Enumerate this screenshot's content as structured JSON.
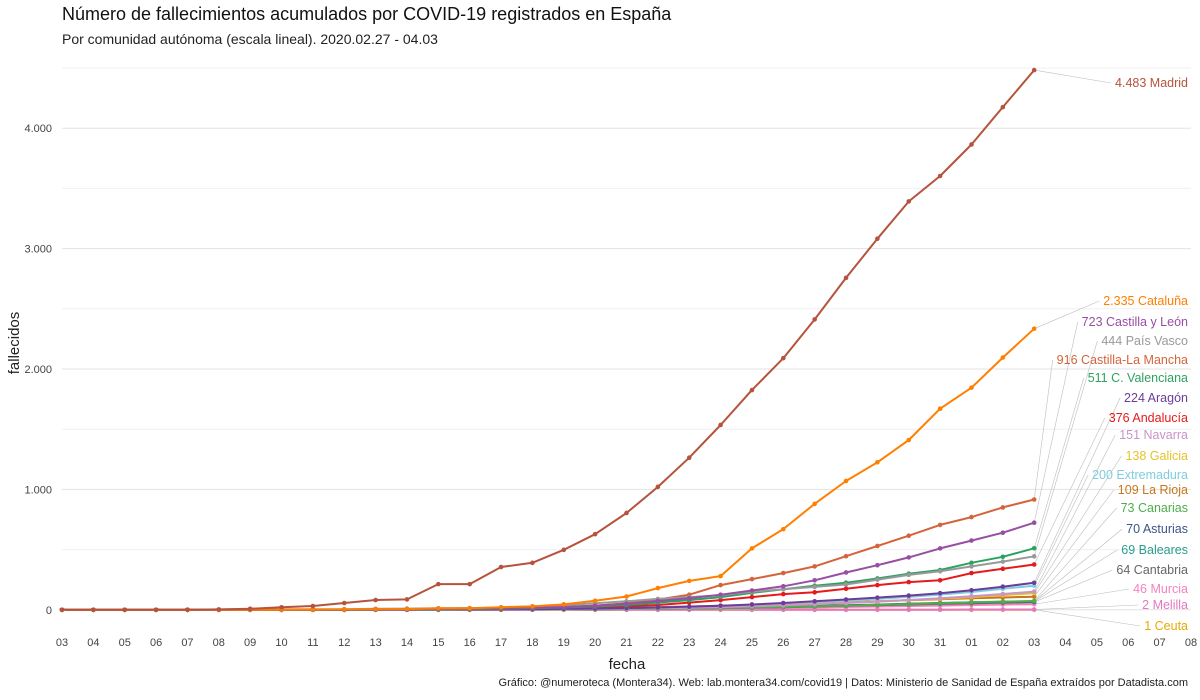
{
  "header": {
    "title": "Número de fallecimientos acumulados por COVID-19 registrados en España",
    "subtitle": "Por comunidad autónoma (escala lineal). 2020.02.27 - 04.03"
  },
  "caption": "Gráfico: @numeroteca (Montera34). Web: lab.montera34.com/covid19 | Datos: Ministerio de Sanidad de España extraídos por Datadista.com",
  "chart_data": {
    "type": "line",
    "title": "Número de fallecimientos acumulados por COVID-19 registrados en España",
    "subtitle": "Por comunidad autónoma (escala lineal). 2020.02.27 - 04.03",
    "xlabel": "fecha",
    "ylabel": "fallecidos",
    "x": [
      "2020-03-03",
      "2020-03-04",
      "2020-03-05",
      "2020-03-06",
      "2020-03-07",
      "2020-03-08",
      "2020-03-09",
      "2020-03-10",
      "2020-03-11",
      "2020-03-12",
      "2020-03-13",
      "2020-03-14",
      "2020-03-15",
      "2020-03-16",
      "2020-03-17",
      "2020-03-18",
      "2020-03-19",
      "2020-03-20",
      "2020-03-21",
      "2020-03-22",
      "2020-03-23",
      "2020-03-24",
      "2020-03-25",
      "2020-03-26",
      "2020-03-27",
      "2020-03-28",
      "2020-03-29",
      "2020-03-30",
      "2020-03-31",
      "2020-04-01",
      "2020-04-02",
      "2020-04-03"
    ],
    "x_ticks": [
      "03",
      "04",
      "05",
      "06",
      "07",
      "08",
      "09",
      "10",
      "11",
      "12",
      "13",
      "14",
      "15",
      "16",
      "17",
      "18",
      "19",
      "20",
      "21",
      "22",
      "23",
      "24",
      "25",
      "26",
      "27",
      "28",
      "29",
      "30",
      "31",
      "01",
      "02",
      "03",
      "04",
      "05",
      "06",
      "07",
      "08"
    ],
    "y_ticks": [
      0,
      1000,
      2000,
      3000,
      4000
    ],
    "y_tick_labels": [
      "0",
      "1.000",
      "2.000",
      "3.000",
      "4.000"
    ],
    "ylim": [
      -60,
      4550
    ],
    "grid": true,
    "legend": "direct labels at right end of lines",
    "series": [
      {
        "name": "Ceuta",
        "label": "1 Ceuta",
        "color": "#E6AB02",
        "values": [
          0,
          0,
          0,
          0,
          0,
          0,
          0,
          0,
          0,
          0,
          0,
          0,
          0,
          0,
          0,
          0,
          0,
          0,
          0,
          0,
          0,
          0,
          0,
          0,
          0,
          0,
          0,
          0,
          0,
          0,
          1,
          1
        ]
      },
      {
        "name": "Melilla",
        "label": "2 Melilla",
        "color": "#E377C2",
        "values": [
          0,
          0,
          0,
          0,
          0,
          0,
          0,
          0,
          0,
          0,
          0,
          0,
          0,
          0,
          0,
          0,
          0,
          0,
          0,
          0,
          0,
          0,
          0,
          0,
          0,
          1,
          1,
          1,
          1,
          2,
          2,
          2
        ]
      },
      {
        "name": "Murcia",
        "label": "46 Murcia",
        "color": "#F781BF",
        "values": [
          0,
          0,
          0,
          0,
          0,
          0,
          0,
          0,
          0,
          0,
          0,
          0,
          0,
          0,
          1,
          1,
          2,
          3,
          4,
          6,
          8,
          10,
          12,
          16,
          19,
          23,
          27,
          31,
          35,
          40,
          43,
          46
        ]
      },
      {
        "name": "Cantabria",
        "label": "64 Cantabria",
        "color": "#666666",
        "values": [
          0,
          0,
          0,
          0,
          0,
          0,
          0,
          0,
          0,
          0,
          0,
          0,
          0,
          0,
          1,
          2,
          3,
          4,
          6,
          8,
          11,
          14,
          17,
          21,
          27,
          33,
          38,
          44,
          49,
          54,
          59,
          64
        ]
      },
      {
        "name": "Baleares",
        "label": "69 Baleares",
        "color": "#2A9D8F",
        "values": [
          0,
          0,
          0,
          0,
          0,
          0,
          0,
          0,
          0,
          0,
          1,
          1,
          2,
          2,
          3,
          3,
          4,
          5,
          7,
          9,
          12,
          16,
          20,
          24,
          29,
          35,
          42,
          48,
          54,
          60,
          64,
          69
        ]
      },
      {
        "name": "Asturias",
        "label": "70 Asturias",
        "color": "#3C5488",
        "values": [
          0,
          0,
          0,
          0,
          0,
          0,
          0,
          0,
          0,
          0,
          1,
          1,
          2,
          3,
          4,
          5,
          6,
          8,
          10,
          13,
          16,
          19,
          22,
          27,
          32,
          37,
          43,
          50,
          56,
          61,
          66,
          70
        ]
      },
      {
        "name": "Canarias",
        "label": "73 Canarias",
        "color": "#4DAF4A",
        "values": [
          0,
          0,
          0,
          0,
          0,
          0,
          0,
          0,
          0,
          0,
          1,
          1,
          1,
          2,
          2,
          3,
          4,
          5,
          7,
          9,
          12,
          15,
          19,
          24,
          29,
          34,
          41,
          48,
          55,
          62,
          68,
          73
        ]
      },
      {
        "name": "La Rioja",
        "label": "109 La Rioja",
        "color": "#C8761A",
        "values": [
          0,
          0,
          0,
          0,
          0,
          0,
          0,
          0,
          1,
          1,
          2,
          3,
          4,
          5,
          7,
          9,
          11,
          14,
          18,
          22,
          27,
          33,
          39,
          46,
          54,
          62,
          70,
          79,
          87,
          95,
          102,
          109
        ]
      },
      {
        "name": "Extremadura",
        "label": "200 Extremadura",
        "color": "#7FCDE0",
        "values": [
          0,
          0,
          0,
          0,
          0,
          0,
          0,
          0,
          0,
          0,
          0,
          1,
          1,
          2,
          3,
          4,
          6,
          9,
          13,
          18,
          24,
          31,
          40,
          50,
          62,
          75,
          90,
          107,
          126,
          148,
          175,
          200
        ]
      },
      {
        "name": "Galicia",
        "label": "138 Galicia",
        "color": "#E6C229",
        "values": [
          0,
          0,
          0,
          0,
          0,
          0,
          0,
          0,
          0,
          0,
          0,
          1,
          1,
          2,
          3,
          4,
          6,
          8,
          11,
          14,
          19,
          25,
          32,
          40,
          48,
          58,
          69,
          80,
          92,
          105,
          121,
          138
        ]
      },
      {
        "name": "Navarra",
        "label": "151 Navarra",
        "color": "#C994C7",
        "values": [
          0,
          0,
          0,
          0,
          0,
          0,
          0,
          0,
          0,
          0,
          0,
          1,
          1,
          2,
          3,
          4,
          5,
          7,
          9,
          13,
          17,
          22,
          29,
          37,
          46,
          56,
          68,
          81,
          96,
          112,
          131,
          151
        ]
      },
      {
        "name": "Andalucía",
        "label": "376 Andalucía",
        "color": "#E41A1C",
        "values": [
          0,
          0,
          0,
          0,
          0,
          0,
          0,
          0,
          1,
          1,
          2,
          3,
          4,
          6,
          9,
          12,
          16,
          20,
          30,
          40,
          60,
          80,
          105,
          130,
          145,
          175,
          205,
          230,
          245,
          305,
          340,
          376
        ]
      },
      {
        "name": "Aragón",
        "label": "224 Aragón",
        "color": "#6A3D9A",
        "values": [
          0,
          0,
          0,
          0,
          0,
          0,
          0,
          0,
          0,
          0,
          1,
          1,
          2,
          3,
          4,
          5,
          7,
          10,
          14,
          19,
          26,
          34,
          44,
          56,
          70,
          85,
          101,
          118,
          138,
          162,
          192,
          224
        ]
      },
      {
        "name": "C. Valenciana",
        "label": "511 C. Valenciana",
        "color": "#2CA25F",
        "values": [
          0,
          0,
          0,
          0,
          0,
          0,
          0,
          0,
          1,
          1,
          2,
          3,
          4,
          6,
          9,
          13,
          19,
          27,
          40,
          60,
          80,
          105,
          140,
          170,
          200,
          225,
          260,
          300,
          330,
          390,
          440,
          511
        ]
      },
      {
        "name": "Castilla-La Mancha",
        "label": "916 Castilla-La Mancha",
        "color": "#D3643B",
        "values": [
          0,
          0,
          0,
          0,
          0,
          0,
          0,
          1,
          1,
          2,
          3,
          5,
          7,
          9,
          12,
          17,
          25,
          35,
          55,
          85,
          125,
          205,
          255,
          305,
          360,
          445,
          530,
          615,
          705,
          770,
          850,
          916
        ]
      },
      {
        "name": "País Vasco",
        "label": "444 País Vasco",
        "color": "#999999",
        "values": [
          0,
          0,
          0,
          0,
          0,
          1,
          2,
          3,
          4,
          5,
          8,
          10,
          12,
          14,
          18,
          28,
          38,
          55,
          70,
          90,
          105,
          120,
          150,
          170,
          190,
          210,
          250,
          290,
          320,
          360,
          400,
          444
        ]
      },
      {
        "name": "Castilla y León",
        "label": "723 Castilla y León",
        "color": "#984EA3",
        "values": [
          0,
          0,
          0,
          0,
          0,
          0,
          0,
          1,
          1,
          2,
          3,
          5,
          8,
          10,
          13,
          17,
          22,
          33,
          50,
          73,
          96,
          125,
          160,
          195,
          245,
          310,
          370,
          435,
          510,
          575,
          640,
          723
        ]
      },
      {
        "name": "Cataluña",
        "label": "2.335 Cataluña",
        "color": "#FF7F00",
        "values": [
          0,
          0,
          0,
          0,
          0,
          0,
          1,
          1,
          2,
          3,
          5,
          6,
          12,
          13,
          21,
          28,
          45,
          75,
          110,
          180,
          240,
          280,
          510,
          670,
          880,
          1070,
          1225,
          1410,
          1670,
          1845,
          2095,
          2335
        ]
      },
      {
        "name": "Madrid",
        "label": "4.483 Madrid",
        "color": "#B5533C",
        "values": [
          0,
          0,
          0,
          0,
          1,
          3,
          8,
          21,
          31,
          56,
          81,
          86,
          213,
          213,
          355,
          390,
          498,
          628,
          804,
          1021,
          1263,
          1535,
          1825,
          2090,
          2412,
          2757,
          3082,
          3392,
          3603,
          3865,
          4175,
          4483
        ]
      }
    ]
  }
}
